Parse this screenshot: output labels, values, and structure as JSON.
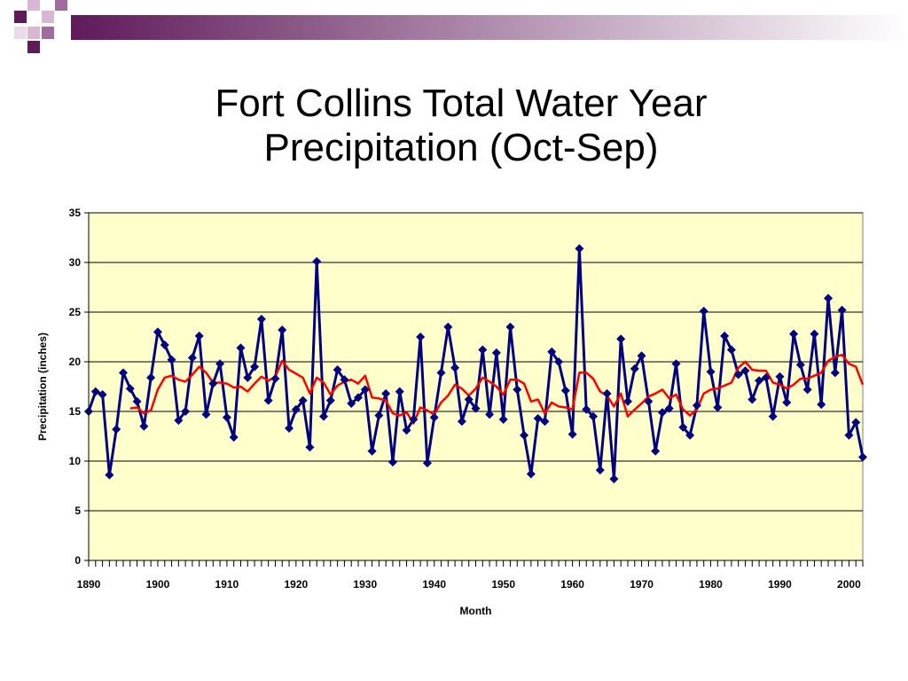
{
  "slide": {
    "title_line1": "Fort Collins Total Water Year",
    "title_line2": "Precipitation (Oct-Sep)"
  },
  "colors": {
    "plot_background": "#FFFFCC",
    "series_line": "#000080",
    "moving_average": "#FF0000",
    "gridline": "#000000",
    "accent_purple": "#660066"
  },
  "chart_data": {
    "type": "line",
    "title": "",
    "xlabel": "Month",
    "ylabel": "Precipitation (inches)",
    "xlim": [
      1890,
      2002
    ],
    "ylim": [
      0,
      35
    ],
    "x_ticks": [
      1890,
      1900,
      1910,
      1920,
      1930,
      1940,
      1950,
      1960,
      1970,
      1980,
      1990,
      2000
    ],
    "y_ticks": [
      0,
      5,
      10,
      15,
      20,
      25,
      30,
      35
    ],
    "grid": "horizontal",
    "legend": "none",
    "series": [
      {
        "type": "line",
        "marker": "diamond",
        "x": [
          1890,
          1891,
          1892,
          1893,
          1894,
          1895,
          1896,
          1897,
          1898,
          1899,
          1900,
          1901,
          1902,
          1903,
          1904,
          1905,
          1906,
          1907,
          1908,
          1909,
          1910,
          1911,
          1912,
          1913,
          1914,
          1915,
          1916,
          1917,
          1918,
          1919,
          1920,
          1921,
          1922,
          1923,
          1924,
          1925,
          1926,
          1927,
          1928,
          1929,
          1930,
          1931,
          1932,
          1933,
          1934,
          1935,
          1936,
          1937,
          1938,
          1939,
          1940,
          1941,
          1942,
          1943,
          1944,
          1945,
          1946,
          1947,
          1948,
          1949,
          1950,
          1951,
          1952,
          1953,
          1954,
          1955,
          1956,
          1957,
          1958,
          1959,
          1960,
          1961,
          1962,
          1963,
          1964,
          1965,
          1966,
          1967,
          1968,
          1969,
          1970,
          1971,
          1972,
          1973,
          1974,
          1975,
          1976,
          1977,
          1978,
          1979,
          1980,
          1981,
          1982,
          1983,
          1984,
          1985,
          1986,
          1987,
          1988,
          1989,
          1990,
          1991,
          1992,
          1993,
          1994,
          1995,
          1996,
          1997,
          1998,
          1999,
          2000,
          2001,
          2002
        ],
        "values": [
          15.0,
          17.0,
          16.7,
          8.6,
          13.2,
          18.9,
          17.3,
          16.0,
          13.5,
          18.4,
          23.0,
          21.7,
          20.2,
          14.1,
          15.0,
          20.4,
          22.6,
          14.7,
          17.8,
          19.8,
          14.4,
          12.4,
          21.4,
          18.4,
          19.5,
          24.3,
          16.1,
          18.3,
          23.2,
          13.3,
          15.2,
          16.1,
          11.4,
          30.1,
          14.5,
          16.1,
          19.2,
          18.2,
          15.8,
          16.4,
          17.2,
          11.0,
          14.6,
          16.8,
          9.9,
          17.0,
          13.1,
          14.2,
          22.5,
          9.8,
          14.4,
          18.9,
          23.5,
          19.4,
          14.0,
          16.2,
          15.3,
          21.2,
          14.7,
          20.9,
          14.2,
          23.5,
          17.2,
          12.6,
          8.7,
          14.3,
          14.0,
          21.0,
          20.0,
          17.1,
          12.7,
          31.4,
          15.2,
          14.5,
          9.1,
          16.8,
          8.2,
          22.3,
          16.0,
          19.3,
          20.6,
          16.0,
          11.0,
          14.9,
          15.3,
          19.8,
          13.4,
          12.6,
          15.6,
          25.1,
          19.0,
          15.4,
          22.6,
          21.2,
          18.7,
          19.1,
          16.2,
          18.1,
          18.4,
          14.5,
          18.5,
          15.9,
          22.8,
          19.7,
          17.2,
          22.8,
          15.7,
          26.4,
          18.9,
          25.2,
          12.6,
          13.9,
          10.4
        ]
      },
      {
        "type": "line",
        "marker": "none",
        "x": [
          1896,
          1897,
          1898,
          1899,
          1900,
          1901,
          1902,
          1903,
          1904,
          1905,
          1906,
          1907,
          1908,
          1909,
          1910,
          1911,
          1912,
          1913,
          1914,
          1915,
          1916,
          1917,
          1918,
          1919,
          1920,
          1921,
          1922,
          1923,
          1924,
          1925,
          1926,
          1927,
          1928,
          1929,
          1930,
          1931,
          1932,
          1933,
          1934,
          1935,
          1936,
          1937,
          1938,
          1939,
          1940,
          1941,
          1942,
          1943,
          1944,
          1945,
          1946,
          1947,
          1948,
          1949,
          1950,
          1951,
          1952,
          1953,
          1954,
          1955,
          1956,
          1957,
          1958,
          1959,
          1960,
          1961,
          1962,
          1963,
          1964,
          1965,
          1966,
          1967,
          1968,
          1969,
          1970,
          1971,
          1972,
          1973,
          1974,
          1975,
          1976,
          1977,
          1978,
          1979,
          1980,
          1981,
          1982,
          1983,
          1984,
          1985,
          1986,
          1987,
          1988,
          1989,
          1990,
          1991,
          1992,
          1993,
          1994,
          1995,
          1996,
          1997,
          1998,
          1999,
          2000,
          2001,
          2002
        ],
        "values": [
          15.3,
          15.4,
          14.8,
          15.1,
          17.2,
          18.4,
          18.6,
          18.2,
          18.0,
          18.7,
          19.5,
          18.9,
          17.9,
          17.9,
          17.8,
          17.4,
          17.5,
          17.0,
          17.8,
          18.5,
          18.1,
          18.5,
          20.1,
          19.2,
          18.8,
          18.4,
          16.8,
          18.4,
          17.9,
          16.7,
          17.6,
          18.0,
          18.2,
          17.8,
          18.6,
          16.4,
          16.3,
          16.1,
          14.8,
          14.6,
          14.9,
          13.8,
          15.4,
          15.1,
          14.7,
          15.9,
          16.6,
          17.7,
          17.3,
          16.6,
          17.3,
          18.4,
          18.0,
          17.5,
          16.7,
          18.2,
          18.2,
          17.8,
          16.0,
          16.2,
          14.8,
          15.9,
          15.5,
          15.4,
          15.2,
          18.9,
          18.9,
          18.3,
          17.0,
          16.6,
          15.5,
          16.8,
          14.5,
          15.2,
          15.8,
          16.5,
          16.8,
          17.2,
          16.3,
          16.7,
          15.2,
          14.6,
          15.2,
          16.8,
          17.2,
          17.3,
          17.6,
          17.9,
          19.4,
          20.0,
          19.2,
          19.1,
          19.1,
          17.9,
          17.7,
          17.3,
          17.7,
          18.3,
          18.3,
          18.6,
          18.9,
          20.1,
          20.5,
          20.7,
          19.8,
          19.5,
          17.7
        ]
      }
    ]
  }
}
